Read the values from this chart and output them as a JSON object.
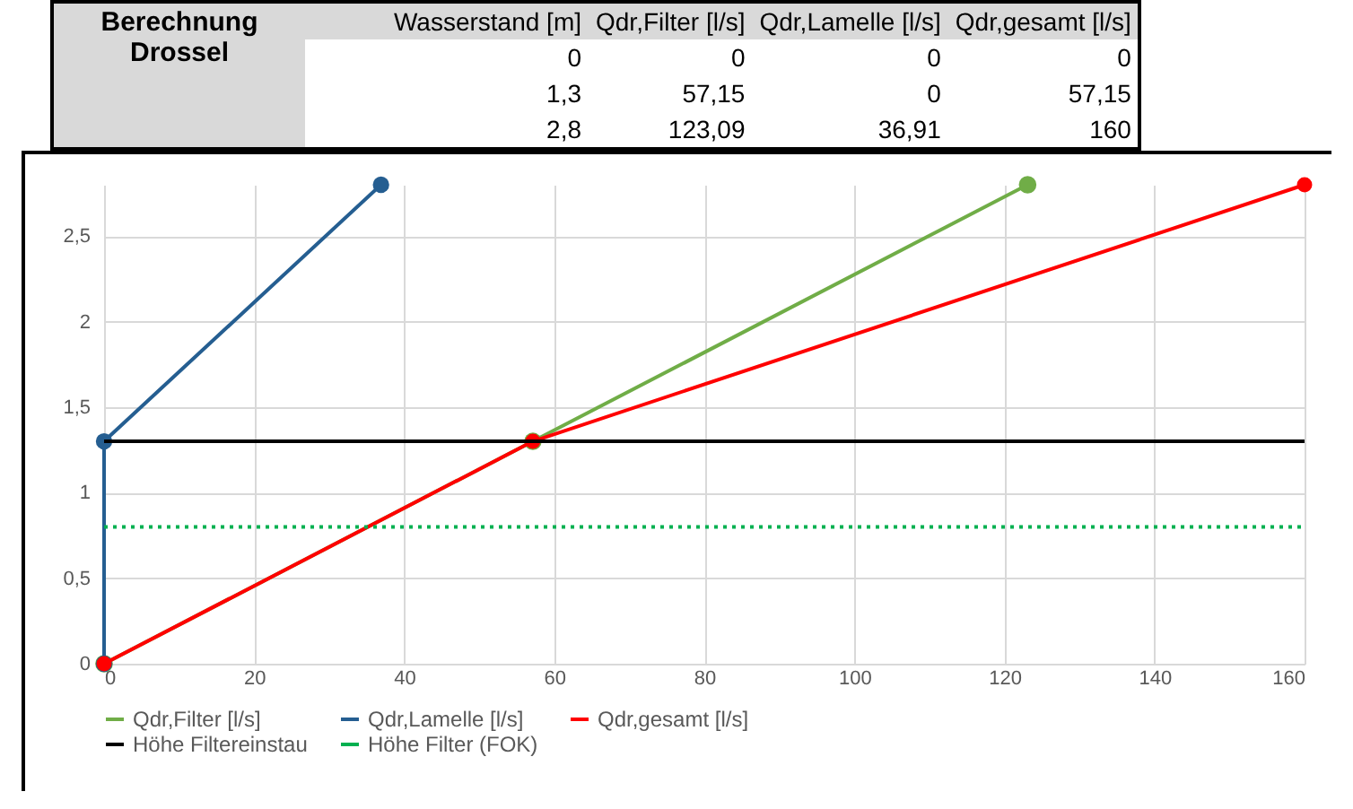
{
  "chart_data": [
    {
      "type": "other",
      "title": "Berechnung Drossel",
      "categories": [
        "Wasserstand [m]",
        "Qdr,Filter [l/s]",
        "Qdr,Lamelle [l/s]",
        "Qdr,gesamt [l/s]"
      ],
      "annotations": [
        "0",
        "0",
        "0",
        "0",
        "1,3",
        "57,15",
        "0",
        "57,15",
        "2,8",
        "123,09",
        "36,91",
        "160"
      ]
    },
    {
      "type": "line",
      "grid": true,
      "legend": "bottom",
      "xlim": [
        0,
        160
      ],
      "xticks": [
        0,
        20,
        40,
        60,
        80,
        100,
        120,
        140,
        160
      ],
      "ylim": [
        0,
        2.8
      ],
      "yticks": [
        0,
        {
          "value": 0.5,
          "label": "0,5"
        },
        1,
        {
          "value": 1.5,
          "label": "1,5"
        },
        2,
        {
          "value": 2.5,
          "label": "2,5"
        }
      ],
      "series": [
        {
          "name": "Qdr,Filter [l/s]",
          "color": "#70ad47",
          "marker": "circle",
          "line_style": "solid",
          "x": [
            0,
            57.15,
            123.09
          ],
          "values": [
            0,
            1.3,
            2.8
          ]
        },
        {
          "name": "Qdr,Lamelle [l/s]",
          "color": "#255e91",
          "marker": "circle",
          "line_style": "solid",
          "x": [
            0,
            0,
            36.91
          ],
          "values": [
            0,
            1.3,
            2.8
          ]
        },
        {
          "name": "Qdr,gesamt [l/s]",
          "color": "#ff0000",
          "marker": "circle",
          "line_style": "solid",
          "x": [
            0,
            57.15,
            160
          ],
          "values": [
            0,
            1.3,
            2.8
          ]
        },
        {
          "name": "Höhe Filtereinstau",
          "color": "#000000",
          "marker": "none",
          "line_style": "solid",
          "x": [
            0,
            160
          ],
          "values": [
            1.3,
            1.3
          ]
        },
        {
          "name": "Höhe Filter (FOK)",
          "color": "#00b050",
          "marker": "none",
          "line_style": "dotted",
          "x": [
            0,
            160
          ],
          "values": [
            0.8,
            0.8
          ]
        }
      ]
    }
  ]
}
